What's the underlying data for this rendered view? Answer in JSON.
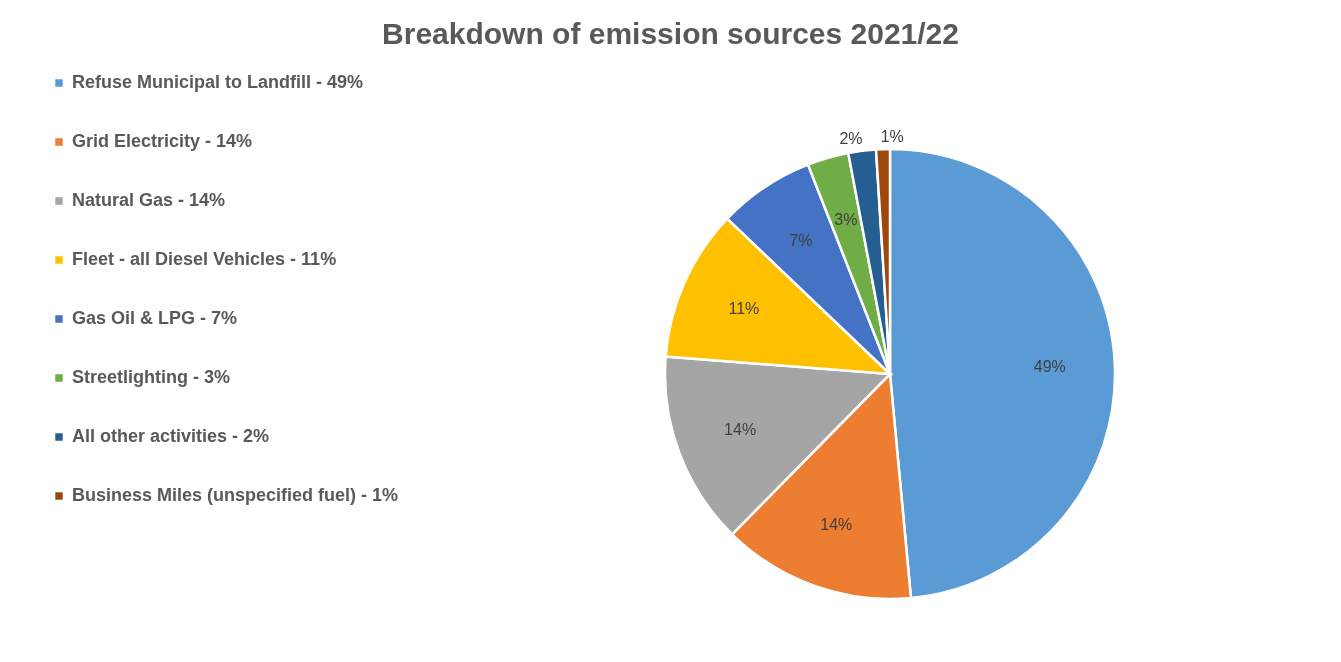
{
  "chart_data": {
    "type": "pie",
    "title": "Breakdown of emission sources 2021/22",
    "categories": [
      "Refuse Municipal to Landfill - 49%",
      "Grid Electricity - 14%",
      "Natural Gas - 14%",
      "Fleet - all Diesel Vehicles - 11%",
      "Gas Oil & LPG - 7%",
      "Streetlighting - 3%",
      "All other activities - 2%",
      "Business Miles (unspecified fuel) - 1%"
    ],
    "values": [
      49,
      14,
      14,
      11,
      7,
      3,
      2,
      1
    ],
    "colors": [
      "#5b9bd5",
      "#ed7d31",
      "#a5a5a5",
      "#ffc000",
      "#4472c4",
      "#70ad47",
      "#255e91",
      "#9e480e"
    ],
    "value_labels": [
      "49%",
      "14%",
      "14%",
      "11%",
      "7%",
      "3%",
      "2%",
      "1%"
    ],
    "legend": "left"
  }
}
